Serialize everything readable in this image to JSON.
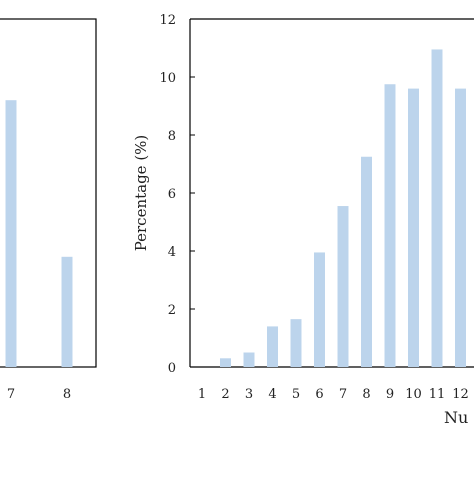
{
  "chart_data": [
    {
      "type": "bar",
      "categories": [
        "7",
        "8"
      ],
      "x_ticks": [
        "7",
        "8"
      ],
      "series": [
        {
          "values": [
            9.2,
            3.8
          ]
        }
      ],
      "bar_color": "#bcd4ec",
      "ylim": [
        0,
        12
      ],
      "grid": false,
      "cropped": "left"
    },
    {
      "type": "bar",
      "title": "",
      "xlabel": "Nu",
      "ylabel": "Percentage (%)",
      "categories": [
        "1",
        "2",
        "3",
        "4",
        "5",
        "6",
        "7",
        "8",
        "9",
        "10",
        "11",
        "12"
      ],
      "x_ticks": [
        "1",
        "2",
        "3",
        "4",
        "5",
        "6",
        "7",
        "8",
        "9",
        "10",
        "11",
        "12"
      ],
      "series": [
        {
          "values": [
            0,
            0.3,
            0.5,
            1.4,
            1.65,
            3.95,
            5.55,
            7.25,
            9.75,
            9.6,
            10.95,
            9.6
          ]
        }
      ],
      "y_ticks": [
        "0",
        "2",
        "4",
        "6",
        "8",
        "10",
        "12"
      ],
      "ylim": [
        0,
        12
      ],
      "bar_color": "#bcd4ec",
      "grid": false,
      "cropped": "right"
    }
  ]
}
